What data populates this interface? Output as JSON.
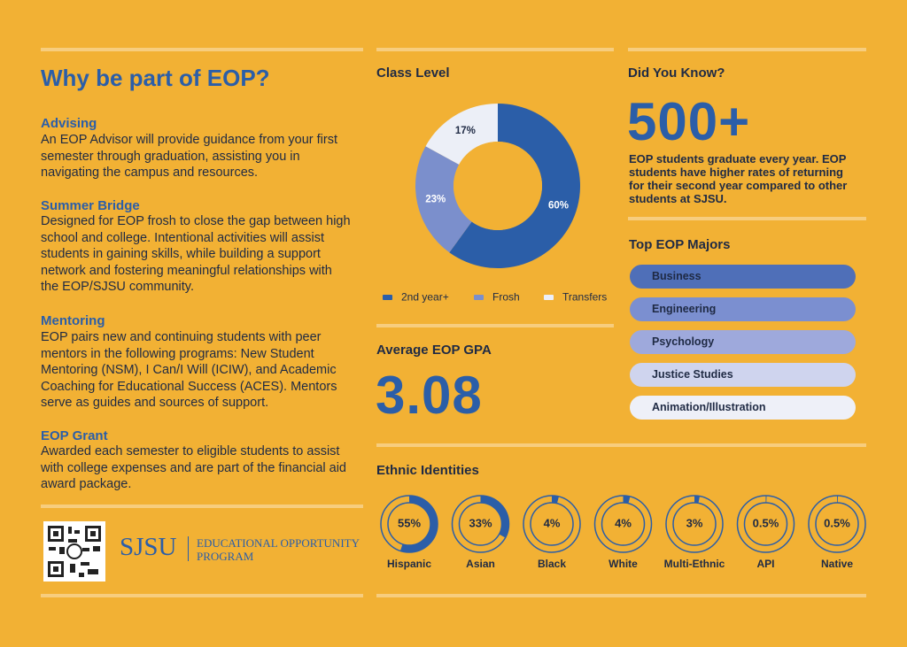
{
  "header": {
    "title": "Why be part of EOP?"
  },
  "sections": [
    {
      "heading": "Advising",
      "body": "An EOP Advisor will provide guidance from your first semester through graduation, assisting you in navigating the campus and resources."
    },
    {
      "heading": "Summer Bridge",
      "body": "Designed for EOP frosh to close the gap between high school and college. Intentional activities will assist students in gaining skills, while building a support network and fostering meaningful relationships with the EOP/SJSU community."
    },
    {
      "heading": "Mentoring",
      "body": "EOP pairs new and continuing students with peer mentors in the following programs: New Student Mentoring (NSM), I Can/I Will (ICIW), and Academic Coaching for Educational Success (ACES). Mentors serve as guides and sources of support."
    },
    {
      "heading": "EOP Grant",
      "body": "Awarded each semester to eligible students to assist with college expenses and are part of the financial aid award package."
    }
  ],
  "logo": {
    "name": "SJSU",
    "line1": "EDUCATIONAL OPPORTUNITY",
    "line2": "PROGRAM"
  },
  "gpa": {
    "title": "Average EOP GPA",
    "value": "3.08"
  },
  "did_you_know": {
    "title": "Did You Know?",
    "value": "500+",
    "text": "EOP students graduate every year. EOP students have higher rates of returning for their second year compared to other students at SJSU."
  },
  "top_majors": {
    "title": "Top EOP Majors",
    "items": [
      "Business",
      "Engineering",
      "Psychology",
      "Justice Studies",
      "Animation/Illustration"
    ]
  },
  "chart_data": [
    {
      "type": "donut",
      "title": "Class Level",
      "categories": [
        "2nd year+",
        "Frosh",
        "Transfers"
      ],
      "values": [
        60,
        23,
        17
      ],
      "value_labels": [
        "60%",
        "23%",
        "17%"
      ],
      "colors": [
        "#2b5ea8",
        "#7b8fcc",
        "#eceff7"
      ]
    },
    {
      "type": "ring",
      "title": "Ethnic Identities",
      "categories": [
        "Hispanic",
        "Asian",
        "Black",
        "White",
        "Multi-Ethnic",
        "API",
        "Native"
      ],
      "values": [
        55,
        33,
        4,
        4,
        3,
        0.5,
        0.5
      ],
      "value_labels": [
        "55%",
        "33%",
        "4%",
        "4%",
        "3%",
        "0.5%",
        "0.5%"
      ],
      "color": "#2b5ea8"
    }
  ]
}
